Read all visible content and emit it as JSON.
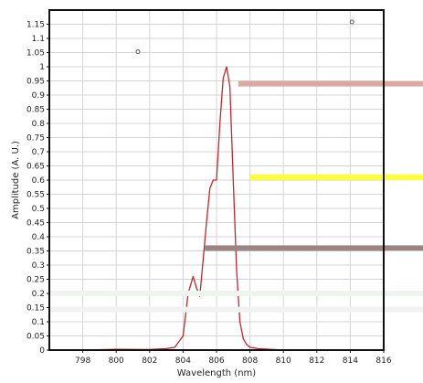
{
  "chart_data": {
    "type": "line",
    "title": "",
    "xlabel": "Wavelength (nm)",
    "ylabel": "Amplitude (A. U.)",
    "xlim": [
      796,
      816
    ],
    "ylim": [
      0,
      1.2
    ],
    "x_ticks": [
      798,
      800,
      802,
      804,
      806,
      808,
      810,
      812,
      814,
      816
    ],
    "y_ticks": [
      0,
      0.05,
      0.1,
      0.15,
      0.2,
      0.25,
      0.3,
      0.35,
      0.4,
      0.45,
      0.5,
      0.55,
      0.6,
      0.65,
      0.7,
      0.75,
      0.8,
      0.85,
      0.9,
      0.95,
      1,
      1.05,
      1.1,
      1.15
    ],
    "x_tick_labels": [
      "798",
      "800",
      "802",
      "804",
      "806",
      "808",
      "810",
      "812",
      "814",
      "816"
    ],
    "y_tick_labels": [
      "0",
      "0.05",
      "0.1",
      "0.15",
      "0.2",
      "0.25",
      "0.3",
      "0.35",
      "0.4",
      "0.45",
      "0.5",
      "0.55",
      "0.6",
      "0.65",
      "0.7",
      "0.75",
      "0.8",
      "0.85",
      "0.9",
      "0.95",
      "1",
      "1.05",
      "1.1",
      "1.15"
    ],
    "grid": true,
    "legend": "none",
    "series": [
      {
        "color": "#c0272d",
        "x": [
          796.0,
          798.0,
          800.0,
          802.0,
          803.0,
          803.5,
          804.0,
          804.3,
          804.6,
          804.8,
          805.0,
          805.2,
          805.4,
          805.6,
          805.8,
          806.0,
          806.2,
          806.4,
          806.6,
          806.8,
          807.0,
          807.2,
          807.4,
          807.6,
          807.8,
          808.0,
          808.5,
          810.0,
          812.0,
          814.0,
          816.0
        ],
        "y": [
          0.0,
          0.0,
          0.003,
          0.002,
          0.005,
          0.01,
          0.05,
          0.2,
          0.26,
          0.22,
          0.19,
          0.32,
          0.45,
          0.57,
          0.6,
          0.6,
          0.8,
          0.96,
          1.0,
          0.93,
          0.6,
          0.28,
          0.1,
          0.04,
          0.02,
          0.01,
          0.005,
          0.0,
          0.0,
          0.0,
          0.0
        ]
      }
    ],
    "markers": [
      {
        "x": 801.3,
        "y": 1.053,
        "color": "#555555"
      },
      {
        "x": 814.1,
        "y": 1.158,
        "color": "#555555"
      }
    ],
    "overlay_bars": [
      {
        "color": "#d9a8a0",
        "x_from": 807.3,
        "y": 0.94
      },
      {
        "color": "#ffff33",
        "x_from": 808.0,
        "y": 0.61
      },
      {
        "color": "#9a8582",
        "x_from": 805.3,
        "y": 0.36
      },
      {
        "color": "#eef4ee",
        "x_from": 796.0,
        "y": 0.2
      },
      {
        "color": "#f2f2f2",
        "x_from": 796.0,
        "y": 0.143
      }
    ]
  }
}
